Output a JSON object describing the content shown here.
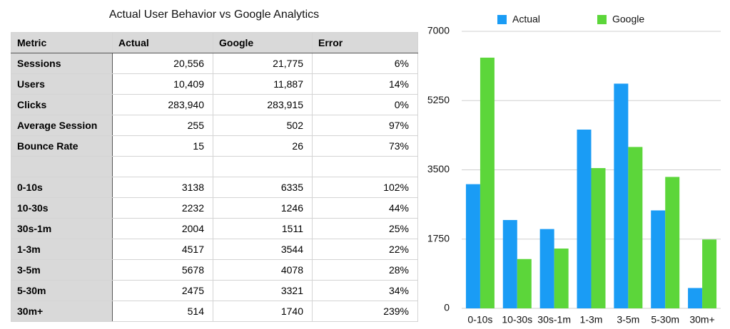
{
  "table": {
    "title": "Actual User Behavior vs Google Analytics",
    "columns": [
      "Metric",
      "Actual",
      "Google",
      "Error"
    ],
    "rows": [
      [
        "Sessions",
        "20,556",
        "21,775",
        "6%"
      ],
      [
        "Users",
        "10,409",
        "11,887",
        "14%"
      ],
      [
        "Clicks",
        "283,940",
        "283,915",
        "0%"
      ],
      [
        "Average Session",
        "255",
        "502",
        "97%"
      ],
      [
        "Bounce Rate",
        "15",
        "26",
        "73%"
      ],
      [
        "0-10s",
        "3138",
        "6335",
        "102%"
      ],
      [
        "10-30s",
        "2232",
        "1246",
        "44%"
      ],
      [
        "30s-1m",
        "2004",
        "1511",
        "25%"
      ],
      [
        "1-3m",
        "4517",
        "3544",
        "22%"
      ],
      [
        "3-5m",
        "5678",
        "4078",
        "28%"
      ],
      [
        "5-30m",
        "2475",
        "3321",
        "34%"
      ],
      [
        "30m+",
        "514",
        "1740",
        "239%"
      ]
    ]
  },
  "chart_data": {
    "type": "bar",
    "categories": [
      "0-10s",
      "10-30s",
      "30s-1m",
      "1-3m",
      "3-5m",
      "5-30m",
      "30m+"
    ],
    "series": [
      {
        "name": "Actual",
        "color": "#1a9cf5",
        "values": [
          3138,
          2232,
          2004,
          4517,
          5678,
          2475,
          514
        ]
      },
      {
        "name": "Google",
        "color": "#5cd63a",
        "values": [
          6335,
          1246,
          1511,
          3544,
          4078,
          3321,
          1740
        ]
      }
    ],
    "ylim": [
      0,
      7000
    ],
    "yticks": [
      0,
      1750,
      3500,
      5250,
      7000
    ],
    "grid": true,
    "legend": "top"
  }
}
